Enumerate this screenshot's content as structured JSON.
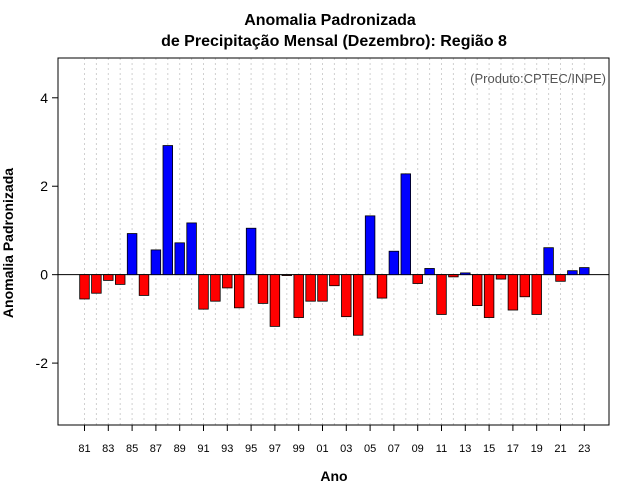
{
  "chart_data": {
    "type": "bar",
    "title_line1": "Anomalia Padronizada",
    "title_line2": "de Precipitação Mensal (Dezembro): Região 8",
    "xlabel": "Ano",
    "ylabel": "Anomalia Padronizada",
    "annotation": "(Produto:CPTEC/INPE)",
    "ylim": [
      -3.4,
      4.9
    ],
    "yticks": [
      -2,
      0,
      2,
      4
    ],
    "grid": "vertical-dotted",
    "positive_color": "#0000ff",
    "negative_color": "#ff0000",
    "categories": [
      "81",
      "82",
      "83",
      "84",
      "85",
      "86",
      "87",
      "88",
      "89",
      "90",
      "91",
      "92",
      "93",
      "94",
      "95",
      "96",
      "97",
      "98",
      "99",
      "00",
      "01",
      "02",
      "03",
      "04",
      "05",
      "06",
      "07",
      "08",
      "09",
      "10",
      "11",
      "12",
      "13",
      "14",
      "15",
      "16",
      "17",
      "18",
      "19",
      "20",
      "21",
      "22",
      "23"
    ],
    "tick_labels": [
      "81",
      "83",
      "85",
      "87",
      "89",
      "91",
      "93",
      "95",
      "97",
      "99",
      "01",
      "03",
      "05",
      "07",
      "09",
      "11",
      "13",
      "15",
      "17",
      "19",
      "21",
      "23"
    ],
    "values": [
      -0.55,
      -0.42,
      -0.13,
      -0.22,
      0.93,
      -0.47,
      0.56,
      2.92,
      0.72,
      1.17,
      -0.78,
      -0.6,
      -0.3,
      -0.75,
      1.05,
      -0.65,
      -1.17,
      -0.02,
      -0.97,
      -0.6,
      -0.6,
      -0.25,
      -0.95,
      -1.37,
      1.33,
      -0.53,
      0.53,
      2.28,
      -0.2,
      0.14,
      -0.9,
      -0.05,
      0.04,
      -0.7,
      -0.97,
      -0.1,
      -0.8,
      -0.5,
      -0.9,
      0.61,
      -0.15,
      0.09,
      0.16
    ]
  }
}
